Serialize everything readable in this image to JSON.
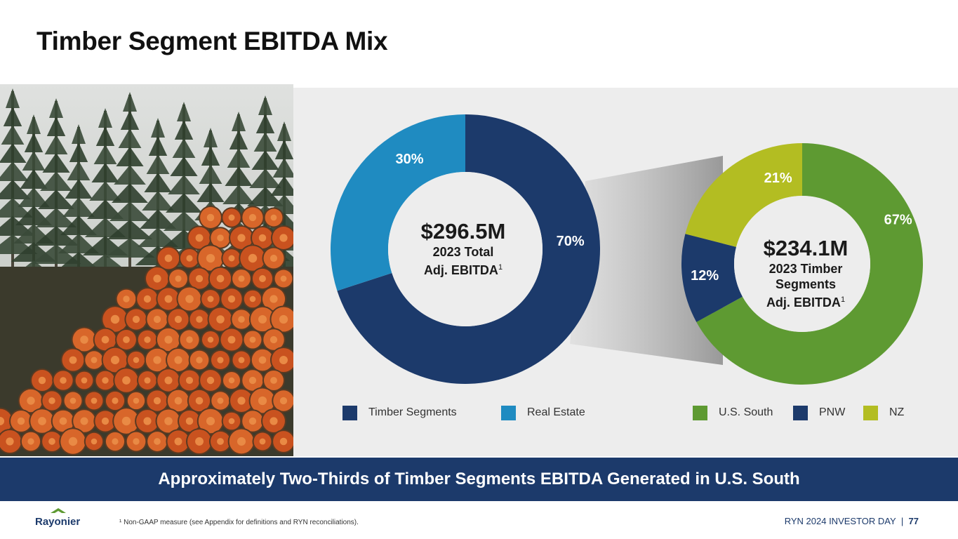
{
  "title": "Timber Segment EBITDA Mix",
  "chart_data": [
    {
      "type": "pie",
      "variant": "donut",
      "center_value": "$296.5M",
      "center_label_line1": "2023 Total",
      "center_label_line2": "Adj. EBITDA",
      "center_label_sup": "1",
      "categories": [
        "Timber Segments",
        "Real Estate"
      ],
      "values": [
        70,
        30
      ],
      "labels": [
        "70%",
        "30%"
      ],
      "colors": [
        "#1c3a6b",
        "#1f8bc1"
      ],
      "legend_placement": "bottom"
    },
    {
      "type": "pie",
      "variant": "donut",
      "center_value": "$234.1M",
      "center_label_line1": "2023 Timber",
      "center_label_line2": "Segments",
      "center_label_line3": "Adj. EBITDA",
      "center_label_sup": "1",
      "categories": [
        "U.S. South",
        "PNW",
        "NZ"
      ],
      "values": [
        67,
        12,
        21
      ],
      "labels": [
        "67%",
        "12%",
        "21%"
      ],
      "colors": [
        "#5e9a32",
        "#1c3a6b",
        "#b3bd22"
      ],
      "legend_placement": "bottom"
    }
  ],
  "banner": "Approximately Two-Thirds of Timber Segments EBITDA Generated in U.S. South",
  "footnote": "¹ Non-GAAP measure (see Appendix for definitions and RYN reconciliations).",
  "footer": {
    "event": "RYN 2024 INVESTOR DAY",
    "separator": "|",
    "page": "77"
  },
  "logo": {
    "text": "Rayonier"
  },
  "colors": {
    "navy": "#1c3a6b",
    "panel": "#ededed"
  }
}
